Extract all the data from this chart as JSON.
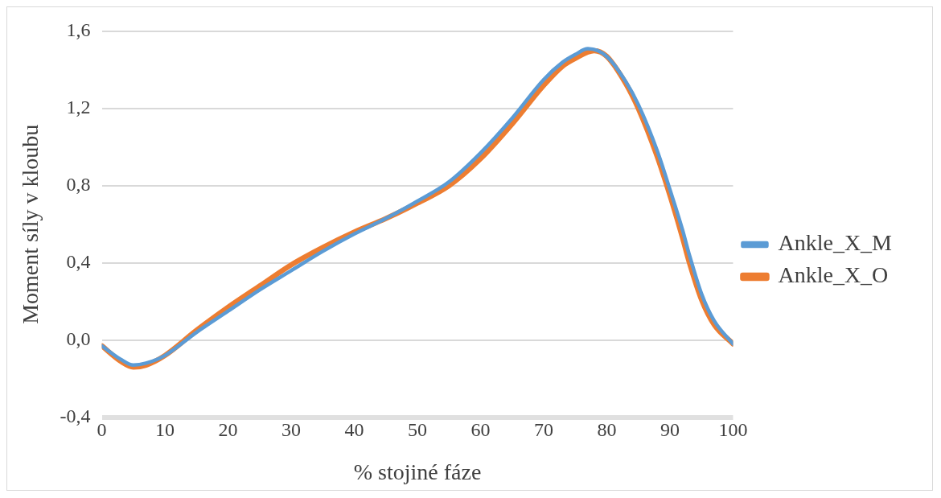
{
  "chart_data": {
    "type": "line",
    "xlabel": "% stojiné fáze",
    "ylabel": "Moment síly v kloubu",
    "xlim": [
      0,
      100
    ],
    "xticks": [
      0,
      10,
      20,
      30,
      40,
      50,
      60,
      70,
      80,
      90,
      100
    ],
    "ylim": [
      -0.4,
      1.6
    ],
    "yticks": [
      {
        "value": -0.4,
        "label": "-0,4"
      },
      {
        "value": 0,
        "label": "0,0"
      },
      {
        "value": 0.4,
        "label": "0,4"
      },
      {
        "value": 0.8,
        "label": "0,8"
      },
      {
        "value": 1.2,
        "label": "1,2"
      },
      {
        "value": 1.6,
        "label": "1,6"
      }
    ],
    "grid": "y",
    "legend": "right",
    "marker": "none",
    "line_style": "solid",
    "series": [
      {
        "name": "Ankle_X_M",
        "color": "#5b9bd5",
        "x": [
          0,
          3,
          5,
          7,
          10,
          15,
          20,
          25,
          30,
          35,
          40,
          45,
          50,
          55,
          60,
          65,
          70,
          73,
          75,
          77,
          80,
          83,
          85,
          88,
          90,
          92,
          93,
          95,
          97,
          100
        ],
        "values": [
          -0.03,
          -0.1,
          -0.13,
          -0.12,
          -0.08,
          0.04,
          0.15,
          0.26,
          0.36,
          0.46,
          0.55,
          0.63,
          0.72,
          0.82,
          0.97,
          1.15,
          1.35,
          1.44,
          1.48,
          1.51,
          1.47,
          1.34,
          1.22,
          0.98,
          0.78,
          0.57,
          0.45,
          0.24,
          0.1,
          -0.02
        ]
      },
      {
        "name": "Ankle_X_O",
        "color": "#ed7d31",
        "x": [
          0,
          3,
          5,
          7,
          10,
          15,
          20,
          25,
          30,
          35,
          40,
          45,
          50,
          55,
          60,
          65,
          70,
          73,
          75,
          78,
          80,
          83,
          85,
          88,
          90,
          92,
          93,
          95,
          97,
          100
        ],
        "values": [
          -0.03,
          -0.11,
          -0.14,
          -0.13,
          -0.08,
          0.05,
          0.17,
          0.28,
          0.39,
          0.48,
          0.56,
          0.63,
          0.71,
          0.8,
          0.94,
          1.12,
          1.32,
          1.42,
          1.46,
          1.5,
          1.47,
          1.33,
          1.2,
          0.95,
          0.75,
          0.53,
          0.41,
          0.21,
          0.08,
          -0.02
        ]
      }
    ]
  }
}
